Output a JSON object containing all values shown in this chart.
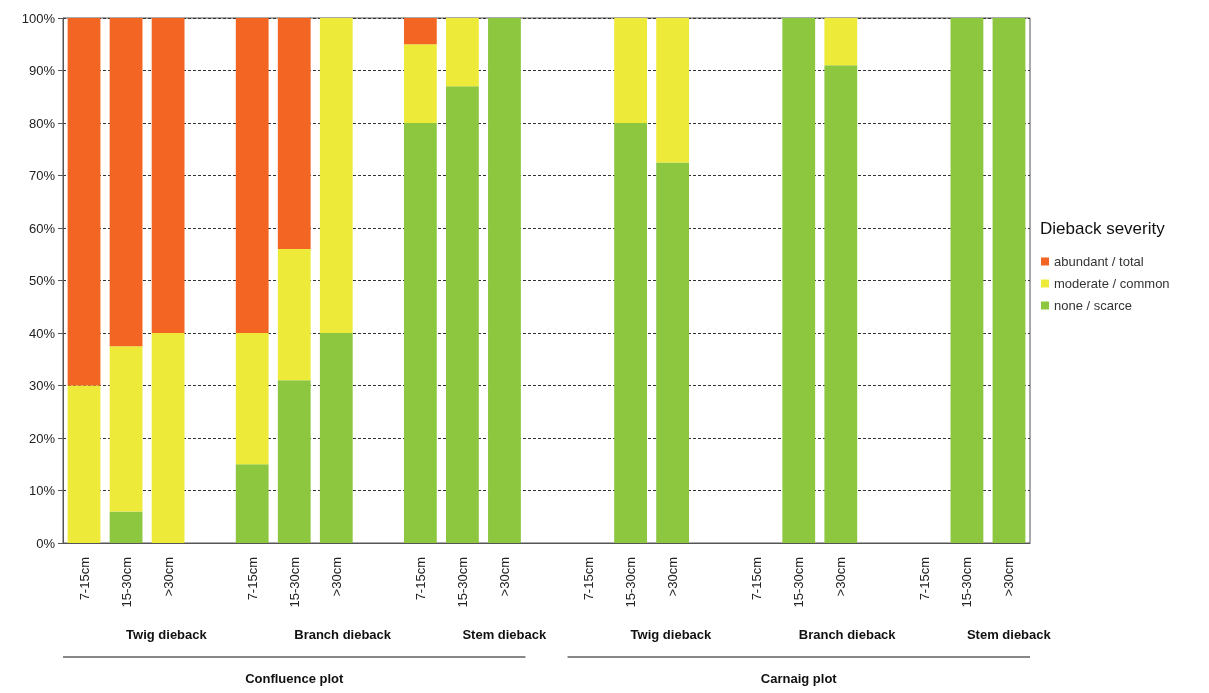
{
  "chart_data": {
    "type": "bar",
    "stacked": true,
    "categories": [
      "7-15cm",
      "15-30cm",
      ">30cm",
      null,
      "7-15cm",
      "15-30cm",
      ">30cm",
      null,
      "7-15cm",
      "15-30cm",
      ">30cm",
      null,
      "7-15cm",
      "15-30cm",
      ">30cm",
      null,
      "7-15cm",
      "15-30cm",
      ">30cm",
      null,
      "7-15cm",
      "15-30cm",
      ">30cm"
    ],
    "series": [
      {
        "name": "none / scarce",
        "color": "#8dc63f",
        "values": [
          0,
          6,
          0,
          null,
          15,
          31,
          40,
          null,
          80,
          87,
          100,
          null,
          null,
          80,
          72.5,
          null,
          null,
          100,
          91,
          null,
          null,
          100,
          100
        ]
      },
      {
        "name": "moderate / common",
        "color": "#eeea3a",
        "values": [
          30,
          31.5,
          40,
          null,
          25,
          25,
          60,
          null,
          15,
          13,
          0,
          null,
          null,
          20,
          27.5,
          null,
          null,
          0,
          9,
          null,
          null,
          0,
          0
        ]
      },
      {
        "name": "abundant / total",
        "color": "#f26522",
        "values": [
          70,
          62.5,
          60,
          null,
          60,
          44,
          0,
          null,
          5,
          0,
          0,
          null,
          null,
          0,
          0,
          null,
          null,
          0,
          0,
          null,
          null,
          0,
          0
        ]
      }
    ],
    "ylim": [
      0,
      100
    ],
    "yticks": [
      {
        "value": 0,
        "label": "0%"
      },
      {
        "value": 10,
        "label": "10%"
      },
      {
        "value": 20,
        "label": "20%"
      },
      {
        "value": 30,
        "label": "30%"
      },
      {
        "value": 40,
        "label": "40%"
      },
      {
        "value": 50,
        "label": "50%"
      },
      {
        "value": 60,
        "label": "60%"
      },
      {
        "value": 70,
        "label": "70%"
      },
      {
        "value": 80,
        "label": "80%"
      },
      {
        "value": 90,
        "label": "90%"
      },
      {
        "value": 100,
        "label": "100%"
      }
    ],
    "grid": "y",
    "legend": "right",
    "legend_title": "Dieback severity",
    "annotations": [
      "Twig dieback",
      "Branch dieback",
      "Stem dieback",
      "Twig dieback",
      "Branch dieback",
      "Stem dieback",
      "Confluence plot",
      "Carnaig plot"
    ]
  }
}
